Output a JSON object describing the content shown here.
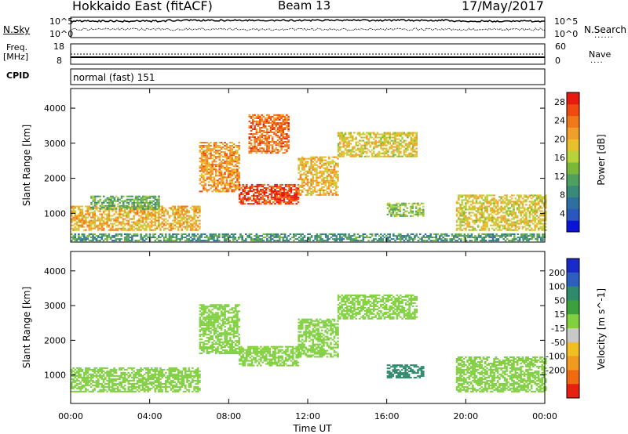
{
  "header": {
    "title": "Hokkaido East (fitACF)",
    "beam": "Beam 13",
    "date": "17/May/2017"
  },
  "top_panels": {
    "nsky_label": "N.Sky",
    "nsearch_label": "N.Search",
    "noise_ticks": [
      "10^5",
      "10^0"
    ],
    "freq_label": "Freq.",
    "freq_unit": "[MHz]",
    "freq_ticks": [
      "18",
      "8"
    ],
    "nave_ticks": [
      "60",
      "0"
    ],
    "nave_label": "Nave",
    "cpid_label": "CPID",
    "cpid_value": "normal (fast) 151"
  },
  "chart_data": [
    {
      "type": "heatmap",
      "panel": "power",
      "ylabel": "Slant Range [km]",
      "xlabel": "Time UT",
      "x_ticks": [
        "00:00",
        "04:00",
        "08:00",
        "12:00",
        "16:00",
        "20:00",
        "00:00"
      ],
      "xlim_hours": [
        0,
        24
      ],
      "ylim": [
        180,
        4560
      ],
      "y_ticks": [
        1000,
        2000,
        3000,
        4000
      ],
      "colorbar": {
        "label": "Power [dB]",
        "ticks": [
          4,
          8,
          12,
          16,
          20,
          24,
          28
        ],
        "range": [
          0,
          30
        ],
        "colors": [
          "#0a14d8",
          "#2a56c0",
          "#2f6fa0",
          "#3a8a7a",
          "#4f9f5f",
          "#7ab83a",
          "#b8d23a",
          "#e8c02c",
          "#f0a02a",
          "#f07a1a",
          "#f04a10",
          "#e81a10"
        ]
      },
      "regions": [
        {
          "t0": 0.0,
          "t1": 6.5,
          "r0": 500,
          "r1": 1200,
          "value": 20
        },
        {
          "t0": 1.0,
          "t1": 4.5,
          "r0": 1100,
          "r1": 1500,
          "value": 12
        },
        {
          "t0": 6.5,
          "t1": 8.5,
          "r0": 1600,
          "r1": 3000,
          "value": 22
        },
        {
          "t0": 8.5,
          "t1": 11.5,
          "r0": 1250,
          "r1": 1800,
          "value": 27
        },
        {
          "t0": 9.0,
          "t1": 11.0,
          "r0": 2700,
          "r1": 3800,
          "value": 24
        },
        {
          "t0": 11.5,
          "t1": 13.5,
          "r0": 1500,
          "r1": 2600,
          "value": 20
        },
        {
          "t0": 13.5,
          "t1": 17.5,
          "r0": 2600,
          "r1": 3300,
          "value": 18
        },
        {
          "t0": 16.0,
          "t1": 17.8,
          "r0": 900,
          "r1": 1300,
          "value": 14
        },
        {
          "t0": 19.5,
          "t1": 24.0,
          "r0": 500,
          "r1": 1500,
          "value": 18
        },
        {
          "t0": 0.0,
          "t1": 24.0,
          "r0": 200,
          "r1": 400,
          "value": 10
        }
      ]
    },
    {
      "type": "heatmap",
      "panel": "velocity",
      "ylabel": "Slant Range [km]",
      "xlabel": "Time UT",
      "x_ticks": [
        "00:00",
        "04:00",
        "08:00",
        "12:00",
        "16:00",
        "20:00",
        "00:00"
      ],
      "xlim_hours": [
        0,
        24
      ],
      "ylim": [
        180,
        4560
      ],
      "y_ticks": [
        1000,
        2000,
        3000,
        4000
      ],
      "colorbar": {
        "label": "Velocity [m s^-1]",
        "ticks": [
          200,
          100,
          50,
          15,
          -15,
          -50,
          -100,
          -200
        ],
        "units_label": "Velocity",
        "colors": [
          "#1a2ac8",
          "#2e5ec0",
          "#2e8a6a",
          "#3ca03c",
          "#80d040",
          "#c8c8c8",
          "#f0c020",
          "#f09a20",
          "#f06a10",
          "#e82010"
        ]
      },
      "regions": [
        {
          "t0": 0.0,
          "t1": 6.5,
          "r0": 500,
          "r1": 1200,
          "value": 0
        },
        {
          "t0": 6.5,
          "t1": 8.5,
          "r0": 1600,
          "r1": 3000,
          "value": 5
        },
        {
          "t0": 8.5,
          "t1": 11.5,
          "r0": 1250,
          "r1": 1800,
          "value": -5
        },
        {
          "t0": 11.5,
          "t1": 13.5,
          "r0": 1500,
          "r1": 2600,
          "value": 0
        },
        {
          "t0": 13.5,
          "t1": 17.5,
          "r0": 2600,
          "r1": 3300,
          "value": 10
        },
        {
          "t0": 16.0,
          "t1": 17.8,
          "r0": 900,
          "r1": 1300,
          "value": 60
        },
        {
          "t0": 19.5,
          "t1": 24.0,
          "r0": 500,
          "r1": 1500,
          "value": -5
        }
      ]
    }
  ]
}
